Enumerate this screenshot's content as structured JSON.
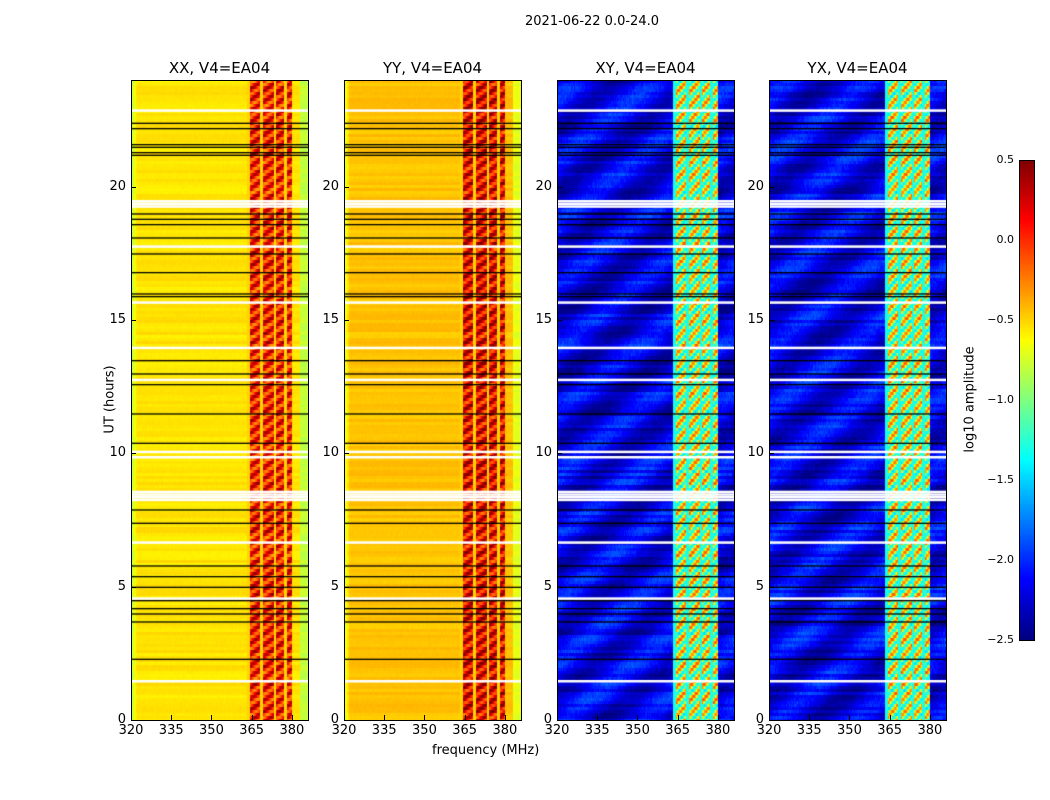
{
  "chart_data": {
    "type": "heatmap",
    "suptitle": "2021-06-22 0.0-24.0",
    "xlabel": "frequency (MHz)",
    "ylabel": "UT (hours)",
    "xlim": [
      320,
      386
    ],
    "ylim": [
      0,
      24
    ],
    "xticks": [
      "320",
      "335",
      "350",
      "365",
      "380"
    ],
    "xtick_values": [
      320,
      335,
      350,
      365,
      380
    ],
    "yticks": [
      "0",
      "5",
      "10",
      "15",
      "20"
    ],
    "ytick_values": [
      0,
      5,
      10,
      15,
      20
    ],
    "panels": [
      {
        "title": "XX, V4=EA04",
        "kind": "parallel",
        "base": -0.55,
        "band_level": 0.05
      },
      {
        "title": "YY, V4=EA04",
        "kind": "parallel",
        "base": -0.45,
        "band_level": 0.15
      },
      {
        "title": "XY, V4=EA04",
        "kind": "cross",
        "base": -2.2,
        "band_level": -0.8
      },
      {
        "title": "YX, V4=EA04",
        "kind": "cross",
        "base": -2.2,
        "band_level": -0.8
      }
    ],
    "bright_band_mhz": [
      363,
      380
    ],
    "subband_gaps_mhz": [
      368.5,
      373.5,
      377.5
    ],
    "flagged_white_hours": [
      1.5,
      4.6,
      6.7,
      8.3,
      8.4,
      8.5,
      8.6,
      9.9,
      10.1,
      12.8,
      14.0,
      15.7,
      17.8,
      19.3,
      19.4,
      19.5,
      22.9
    ],
    "flagged_black_hours": [
      2.3,
      3.7,
      4.0,
      4.2,
      4.5,
      5.0,
      5.4,
      5.8,
      7.4,
      7.9,
      10.4,
      11.5,
      12.6,
      13.0,
      13.5,
      15.9,
      16.0,
      16.8,
      17.5,
      18.1,
      18.6,
      18.8,
      19.0,
      21.2,
      21.3,
      21.5,
      21.6,
      22.2,
      22.4
    ],
    "colorbar": {
      "label": "log10 amplitude",
      "range": [
        -2.5,
        0.5
      ],
      "ticks": [
        "0.5",
        "0.0",
        "−0.5",
        "−1.0",
        "−1.5",
        "−2.0",
        "−2.5"
      ],
      "tick_values": [
        0.5,
        0,
        -0.5,
        -1,
        -1.5,
        -2,
        -2.5
      ],
      "colormap": "jet"
    }
  }
}
